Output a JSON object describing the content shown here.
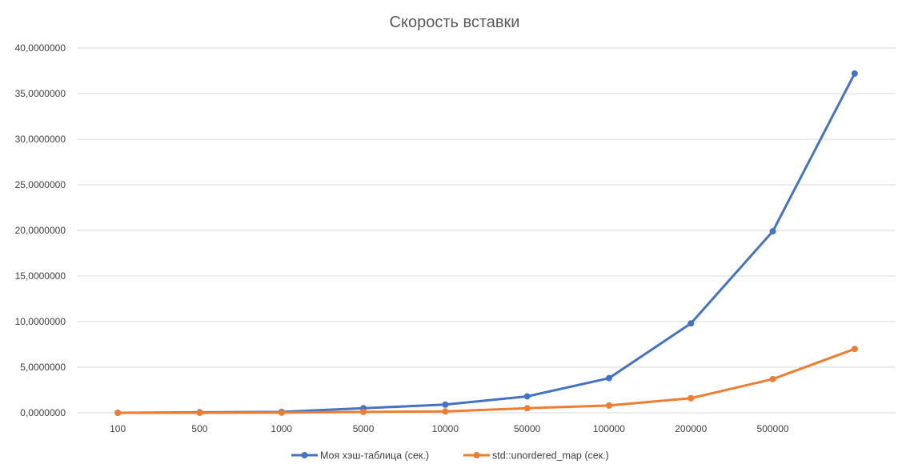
{
  "chart_data": {
    "type": "line",
    "title": "Скорость вставки",
    "xlabel": "",
    "ylabel": "",
    "categories": [
      "100",
      "500",
      "1000",
      "5000",
      "10000",
      "50000",
      "100000",
      "200000",
      "500000",
      ""
    ],
    "y_ticks": [
      "0,0000000",
      "5,0000000",
      "10,0000000",
      "15,0000000",
      "20,0000000",
      "25,0000000",
      "30,0000000",
      "35,0000000",
      "40,0000000"
    ],
    "ylim": [
      0,
      40
    ],
    "grid": true,
    "legend_position": "bottom",
    "series": [
      {
        "name": "Моя хэш-таблица (сек.)",
        "color": "#4472c4",
        "values": [
          0.0,
          0.05,
          0.1,
          0.5,
          0.9,
          1.8,
          3.8,
          9.8,
          19.9,
          37.2
        ]
      },
      {
        "name": "std::unordered_map (сек.)",
        "color": "#ed7d31",
        "values": [
          0.0,
          0.0,
          0.02,
          0.1,
          0.15,
          0.5,
          0.8,
          1.6,
          3.7,
          7.0
        ]
      }
    ]
  }
}
